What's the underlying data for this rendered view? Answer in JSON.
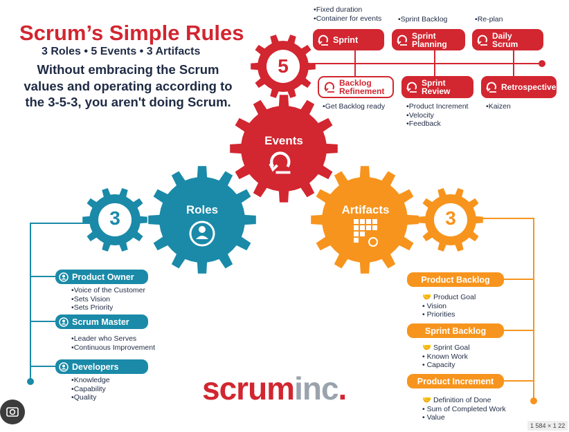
{
  "header": {
    "title": "Scrum’s Simple Rules",
    "subtitle": "3 Roles • 5 Events • 3 Artifacts",
    "tagline": "Without embracing the Scrum values and operating according to the 3-5-3, you aren't doing Scrum."
  },
  "gears": {
    "events_number": "5",
    "events_label": "Events",
    "roles_number": "3",
    "roles_label": "Roles",
    "artifacts_number": "3",
    "artifacts_label": "Artifacts"
  },
  "events": {
    "sprint": {
      "label": "Sprint",
      "notes": [
        "Fixed duration",
        "Container for events"
      ]
    },
    "sprint_planning": {
      "label": "Sprint Planning",
      "notes": [
        "Sprint Backlog"
      ]
    },
    "daily_scrum": {
      "label": "Daily Scrum",
      "notes": [
        "Re-plan"
      ]
    },
    "backlog_refinement": {
      "label": "Backlog Refinement",
      "notes": [
        "Get Backlog ready"
      ]
    },
    "sprint_review": {
      "label": "Sprint Review",
      "notes": [
        "Product Increment",
        "Velocity",
        "Feedback"
      ]
    },
    "retrospective": {
      "label": "Retrospective",
      "notes": [
        "Kaizen"
      ]
    }
  },
  "roles": [
    {
      "label": "Product Owner",
      "notes": [
        "Voice of the Customer",
        "Sets Vision",
        "Sets Priority"
      ]
    },
    {
      "label": "Scrum Master",
      "notes": [
        "Leader who Serves",
        "Continuous Improvement"
      ]
    },
    {
      "label": "Developers",
      "notes": [
        "Knowledge",
        "Capability",
        "Quality"
      ]
    }
  ],
  "artifacts": [
    {
      "label": "Product Backlog",
      "commitment": "Product Goal",
      "notes": [
        "Vision",
        "Priorities"
      ]
    },
    {
      "label": "Sprint Backlog",
      "commitment": "Sprint Goal",
      "notes": [
        "Known Work",
        "Capacity"
      ]
    },
    {
      "label": "Product Increment",
      "commitment": "Definition of Done",
      "notes": [
        "Sum of Completed Work",
        "Value"
      ]
    }
  ],
  "logo": {
    "part1": "scrum",
    "part2": "inc",
    "dot": "."
  },
  "image_size_badge": "1 584 × 1 22",
  "colors": {
    "red": "#d22630",
    "teal": "#1a8aa8",
    "orange": "#f7941d",
    "navy": "#1f2a44",
    "grey": "#9aa3ad"
  },
  "icons": [
    "sprint-cycle-icon",
    "person-icon",
    "handshake-icon",
    "grid-icon",
    "image-search-icon"
  ]
}
